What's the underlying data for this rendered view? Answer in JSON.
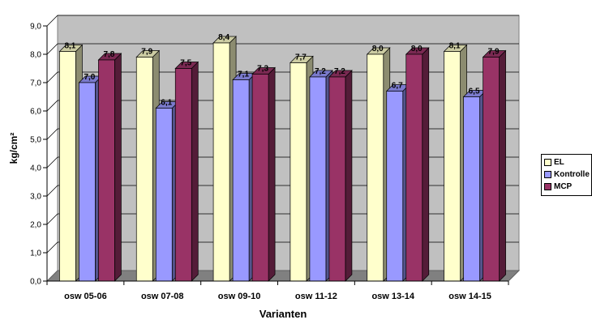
{
  "chart_data": {
    "type": "bar",
    "xlabel": "Varianten",
    "ylabel": "kg/cm²",
    "ylim": [
      0,
      9
    ],
    "yticks": [
      "0,0",
      "1,0",
      "2,0",
      "3,0",
      "4,0",
      "5,0",
      "6,0",
      "7,0",
      "8,0",
      "9,0"
    ],
    "categories": [
      "osw 05-06",
      "osw 07-08",
      "osw 09-10",
      "osw 11-12",
      "osw 13-14",
      "osw 14-15"
    ],
    "series": [
      {
        "name": "EL",
        "values": [
          8.1,
          7.9,
          8.4,
          7.7,
          8.0,
          8.1
        ],
        "labels": [
          "8,1",
          "7,9",
          "8,4",
          "7,7",
          "8,0",
          "8,1"
        ],
        "color": "#ffffcc"
      },
      {
        "name": "Kontrolle",
        "values": [
          7.0,
          6.1,
          7.1,
          7.2,
          6.7,
          6.5
        ],
        "labels": [
          "7,0",
          "6,1",
          "7,1",
          "7,2",
          "6,7",
          "6,5"
        ],
        "color": "#9999ff"
      },
      {
        "name": "MCP",
        "values": [
          7.8,
          7.5,
          7.3,
          7.2,
          8.0,
          7.9
        ],
        "labels": [
          "7,8",
          "7,5",
          "7,3",
          "7,2",
          "8,0",
          "7,9"
        ],
        "color": "#993366"
      }
    ],
    "grid": true,
    "legend_position": "right",
    "style": "3d-column"
  }
}
